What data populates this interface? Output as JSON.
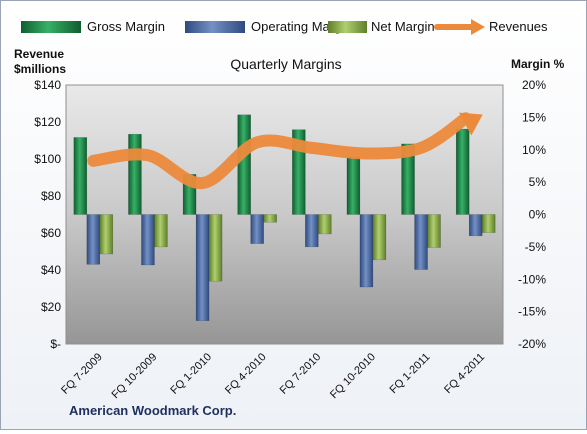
{
  "chart_data": {
    "type": "bar",
    "title": "Quarterly Margins",
    "left_axis_title": [
      "Revenue",
      "$millions"
    ],
    "right_axis_title": "Margin %",
    "footer": "American Woodmark Corp.",
    "categories": [
      "FQ 7-2009",
      "FQ 10-2009",
      "FQ 1-2010",
      "FQ 4-2010",
      "FQ 7-2010",
      "FQ 10-2010",
      "FQ 1-2011",
      "FQ 4-2011"
    ],
    "left_axis": {
      "min": 0,
      "max": 140,
      "step": 20,
      "tick_labels": [
        "$-",
        "$20",
        "$40",
        "$60",
        "$80",
        "$100",
        "$120",
        "$140"
      ]
    },
    "right_axis": {
      "min": -20,
      "max": 20,
      "step": 5,
      "tick_labels": [
        "-20%",
        "-15%",
        "-10%",
        "-5%",
        "0%",
        "5%",
        "10%",
        "15%",
        "20%"
      ]
    },
    "series": [
      {
        "name": "Gross Margin",
        "axis": "right",
        "kind": "bar",
        "color": "#1f8a4c",
        "values": [
          11.9,
          12.4,
          6.2,
          15.4,
          13.1,
          8.9,
          10.9,
          13.2
        ]
      },
      {
        "name": "Operating Margin",
        "axis": "right",
        "kind": "bar",
        "color": "#4f6fa8",
        "values": [
          -7.7,
          -7.8,
          -16.4,
          -4.5,
          -5.0,
          -11.2,
          -8.5,
          -3.3
        ]
      },
      {
        "name": "Net Margin",
        "axis": "right",
        "kind": "bar",
        "color": "#8db04d",
        "values": [
          -6.1,
          -5.0,
          -10.3,
          -1.2,
          -3.0,
          -7.0,
          -5.1,
          -2.8
        ]
      },
      {
        "name": "Revenues",
        "axis": "left",
        "kind": "line",
        "color": "#ec8a3c",
        "values": [
          99,
          102,
          87,
          109,
          106,
          103,
          106,
          122
        ]
      }
    ],
    "legend_position": "top",
    "grid": false
  }
}
